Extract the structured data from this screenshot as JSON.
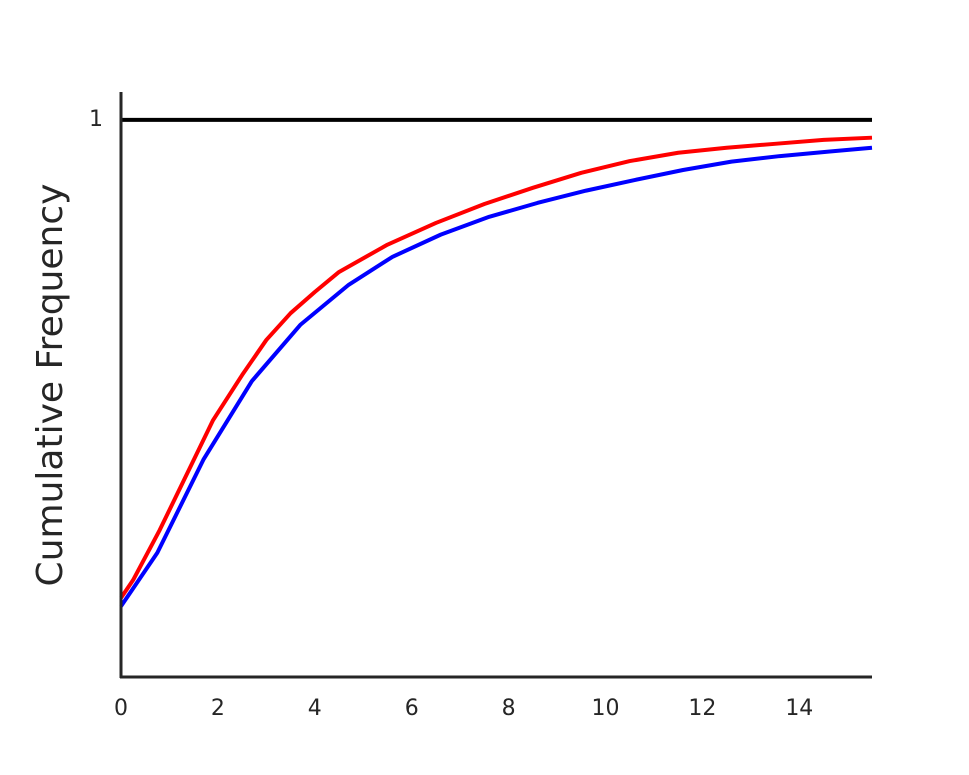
{
  "chart_data": {
    "type": "line",
    "y_label": "Cumulative Frequency",
    "xlim": [
      0,
      15.5
    ],
    "ylim": [
      0,
      1.05
    ],
    "xticks": [
      0,
      2,
      4,
      6,
      8,
      10,
      12,
      14
    ],
    "yticks": [
      1
    ],
    "grid": false,
    "reference_line": {
      "value": 1,
      "color": "#000000"
    },
    "series": [
      {
        "color": "#ff0000",
        "x": [
          0,
          0.25,
          0.8,
          1.9,
          2.5,
          3,
          3.5,
          4,
          4.5,
          5.5,
          6.5,
          7.5,
          8.5,
          9.5,
          10.5,
          11.5,
          12.5,
          13.5,
          14.5,
          15.5
        ],
        "values": [
          0.142,
          0.174,
          0.264,
          0.461,
          0.542,
          0.605,
          0.653,
          0.691,
          0.727,
          0.776,
          0.815,
          0.849,
          0.878,
          0.905,
          0.926,
          0.941,
          0.95,
          0.957,
          0.964,
          0.968
        ]
      },
      {
        "color": "#0000ff",
        "x": [
          0,
          0.75,
          1.7,
          2.7,
          3.7,
          4.7,
          5.6,
          6.6,
          7.6,
          8.6,
          9.6,
          10.6,
          11.6,
          12.6,
          13.6,
          14.6,
          15.5
        ],
        "values": [
          0.127,
          0.223,
          0.39,
          0.531,
          0.632,
          0.704,
          0.754,
          0.794,
          0.826,
          0.851,
          0.873,
          0.892,
          0.91,
          0.925,
          0.935,
          0.943,
          0.95
        ]
      }
    ]
  }
}
